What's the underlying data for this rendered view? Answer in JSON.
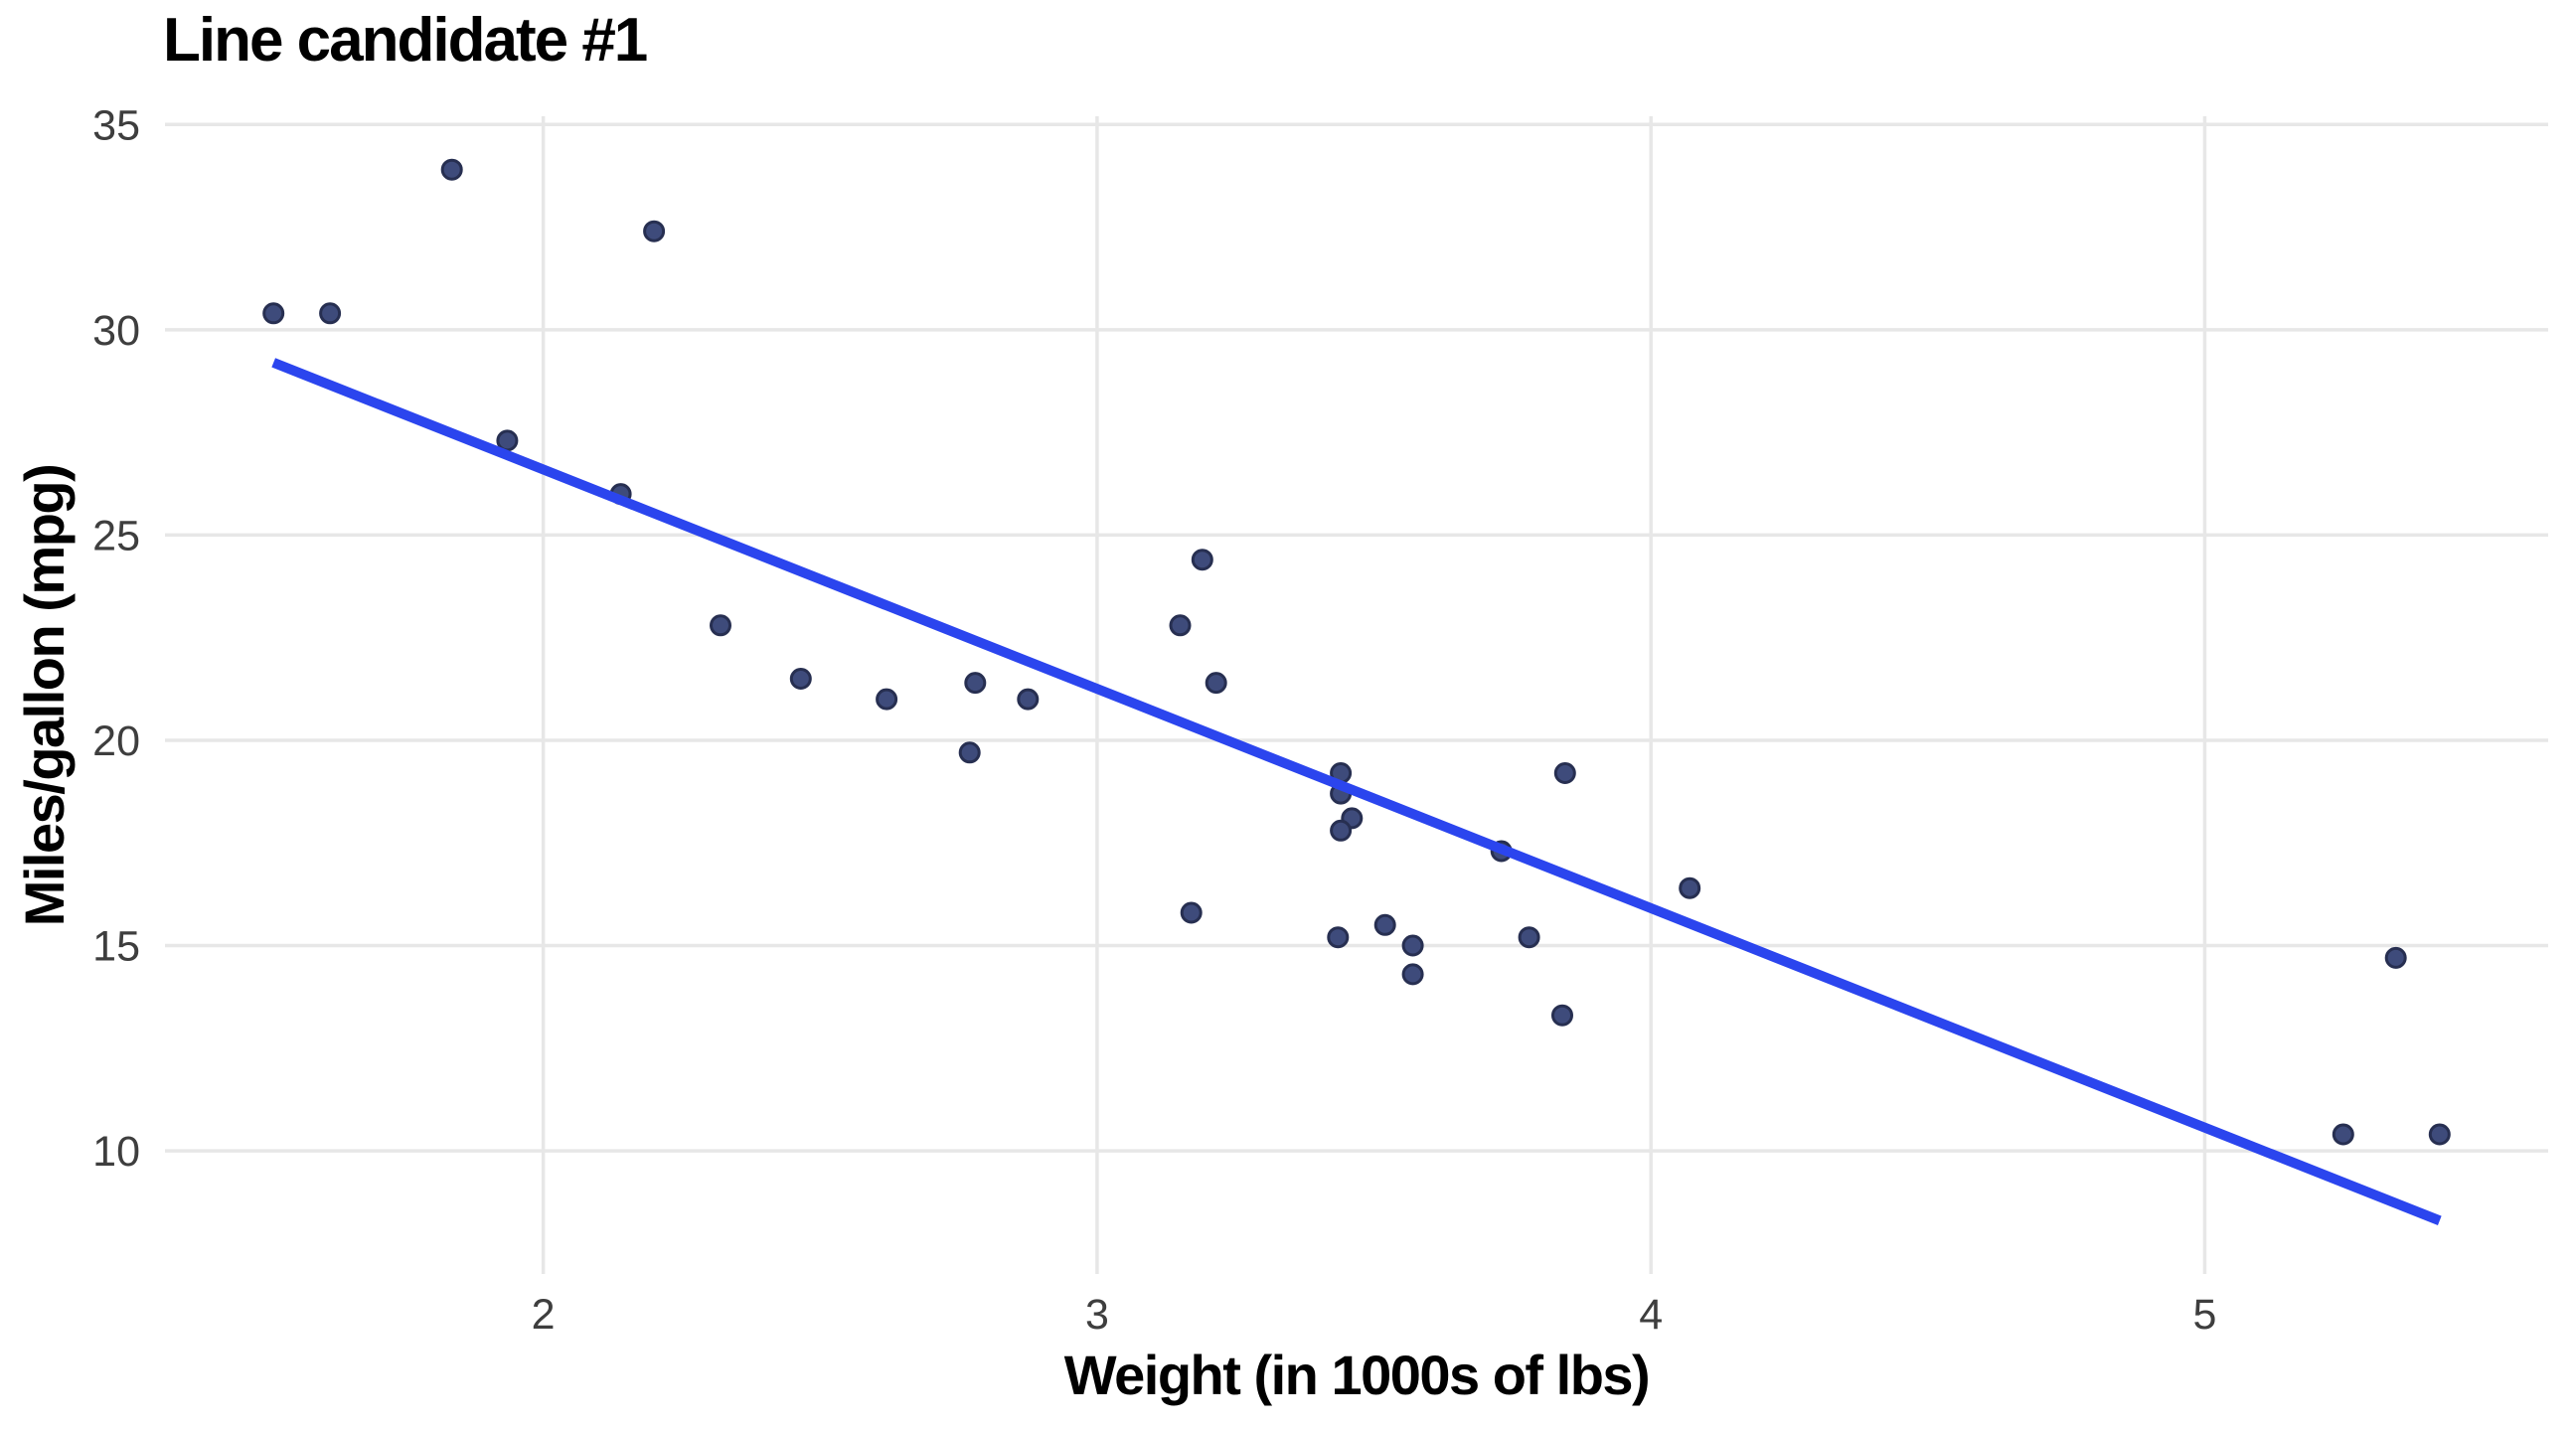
{
  "chart_data": {
    "type": "scatter",
    "title": "Line candidate #1",
    "xlabel": "Weight (in 1000s of lbs)",
    "ylabel": "Miles/gallon (mpg)",
    "xlim": [
      1.317,
      5.62
    ],
    "ylim": [
      7.0,
      35.2
    ],
    "x_ticks": [
      2,
      3,
      4,
      5
    ],
    "y_ticks": [
      10,
      15,
      20,
      25,
      30,
      35
    ],
    "grid": "major-only",
    "legend": "none",
    "points": [
      [
        2.62,
        21.0
      ],
      [
        2.875,
        21.0
      ],
      [
        2.32,
        22.8
      ],
      [
        3.215,
        21.4
      ],
      [
        3.44,
        18.7
      ],
      [
        3.46,
        18.1
      ],
      [
        3.57,
        14.3
      ],
      [
        3.19,
        24.4
      ],
      [
        3.15,
        22.8
      ],
      [
        3.44,
        19.2
      ],
      [
        3.44,
        17.8
      ],
      [
        4.07,
        16.4
      ],
      [
        3.73,
        17.3
      ],
      [
        3.78,
        15.2
      ],
      [
        5.25,
        10.4
      ],
      [
        5.424,
        10.4
      ],
      [
        5.345,
        14.7
      ],
      [
        2.2,
        32.4
      ],
      [
        1.615,
        30.4
      ],
      [
        1.835,
        33.9
      ],
      [
        2.465,
        21.5
      ],
      [
        3.52,
        15.5
      ],
      [
        3.435,
        15.2
      ],
      [
        3.84,
        13.3
      ],
      [
        3.845,
        19.2
      ],
      [
        1.935,
        27.3
      ],
      [
        2.14,
        26.0
      ],
      [
        1.513,
        30.4
      ],
      [
        3.17,
        15.8
      ],
      [
        2.77,
        19.7
      ],
      [
        3.57,
        15.0
      ],
      [
        2.78,
        21.4
      ]
    ],
    "trend_line": {
      "x1": 1.513,
      "y1": 29.2,
      "x2": 5.424,
      "y2": 8.3
    },
    "colors": {
      "background": "#ffffff",
      "gridline": "#e7e7e7",
      "point_fill": "#3e4b7b",
      "point_stroke": "#272f51",
      "trend_line": "#2b45ee",
      "tick_label": "#3e3e3e",
      "title_text": "#000000"
    }
  }
}
